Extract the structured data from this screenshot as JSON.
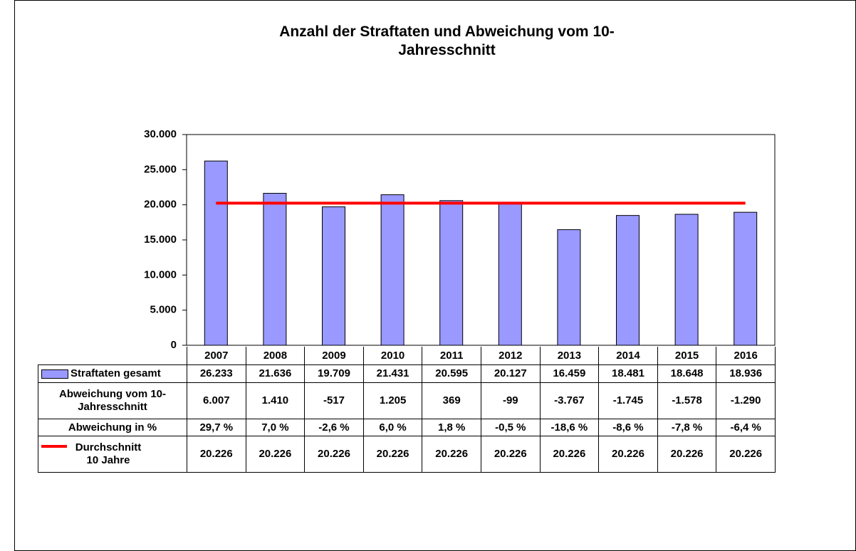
{
  "chart_data": {
    "type": "bar",
    "title": "Anzahl der Straftaten und Abweichung vom 10-Jahresschnitt",
    "categories": [
      "2007",
      "2008",
      "2009",
      "2010",
      "2011",
      "2012",
      "2013",
      "2014",
      "2015",
      "2016"
    ],
    "series": [
      {
        "name": "Straftaten gesamt",
        "type": "bar",
        "color": "#9999ff",
        "values": [
          26233,
          21636,
          19709,
          21431,
          20595,
          20127,
          16459,
          18481,
          18648,
          18936
        ],
        "value_labels": [
          "26.233",
          "21.636",
          "19.709",
          "21.431",
          "20.595",
          "20.127",
          "16.459",
          "18.481",
          "18.648",
          "18.936"
        ]
      },
      {
        "name": "Durchschnitt 10 Jahre",
        "type": "line",
        "color": "#ff0000",
        "values": [
          20226,
          20226,
          20226,
          20226,
          20226,
          20226,
          20226,
          20226,
          20226,
          20226
        ],
        "value_labels": [
          "20.226",
          "20.226",
          "20.226",
          "20.226",
          "20.226",
          "20.226",
          "20.226",
          "20.226",
          "20.226",
          "20.226"
        ]
      }
    ],
    "table_rows": [
      {
        "name": "Abweichung vom 10-Jahresschnitt",
        "values": [
          6007,
          1410,
          -517,
          1205,
          369,
          -99,
          -3767,
          -1745,
          -1578,
          -1290
        ],
        "value_labels": [
          "6.007",
          "1.410",
          "-517",
          "1.205",
          "369",
          "-99",
          "-3.767",
          "-1.745",
          "-1.578",
          "-1.290"
        ]
      },
      {
        "name": "Abweichung in %",
        "values": [
          29.7,
          7.0,
          -2.6,
          6.0,
          1.8,
          -0.5,
          -18.6,
          -8.6,
          -7.8,
          -6.4
        ],
        "value_labels": [
          "29,7 %",
          "7,0 %",
          "-2,6 %",
          "6,0 %",
          "1,8 %",
          "-0,5 %",
          "-18,6 %",
          "-8,6 %",
          "-7,8 %",
          "-6,4 %"
        ]
      }
    ],
    "ylim": [
      0,
      30000
    ],
    "yticks": [
      0,
      {
        "value": 5000,
        "label": "5.000"
      },
      {
        "value": 10000,
        "label": "10.000"
      },
      {
        "value": 15000,
        "label": "15.000"
      },
      {
        "value": 20000,
        "label": "20.000"
      },
      {
        "value": 25000,
        "label": "25.000"
      },
      {
        "value": 30000,
        "label": "30.000"
      }
    ],
    "grid": false
  }
}
